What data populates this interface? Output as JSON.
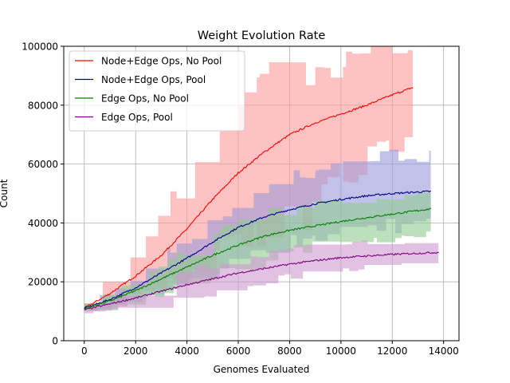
{
  "chart_data": {
    "type": "line",
    "title": "Weight Evolution Rate",
    "xlabel": "Genomes Evaluated",
    "ylabel": "Count",
    "xlim": [
      -800,
      14600
    ],
    "ylim": [
      0,
      100000
    ],
    "xticks": [
      0,
      2000,
      4000,
      6000,
      8000,
      10000,
      12000,
      14000
    ],
    "yticks": [
      0,
      20000,
      40000,
      60000,
      80000,
      100000
    ],
    "grid": true,
    "legend_position": "top-left",
    "series": [
      {
        "name": "Node+Edge Ops, No Pool",
        "color": "#ff0000",
        "band_color": "#ff9999",
        "x": [
          0,
          1000,
          2000,
          3000,
          4000,
          5000,
          6000,
          7000,
          8000,
          9000,
          10000,
          11000,
          12000,
          12800
        ],
        "y": [
          11000,
          16000,
          22000,
          29000,
          38000,
          48000,
          57000,
          64000,
          70000,
          74000,
          77000,
          80000,
          83500,
          86000
        ],
        "lower": [
          10000,
          12000,
          15000,
          19000,
          24000,
          29000,
          34000,
          38000,
          41000,
          45000,
          55000,
          62000,
          65000,
          68000
        ],
        "upper": [
          13000,
          22000,
          30000,
          42000,
          58000,
          70000,
          80000,
          88000,
          90000,
          93000,
          96000,
          98000,
          100000,
          100000
        ]
      },
      {
        "name": "Node+Edge Ops, Pool",
        "color": "#00008b",
        "band_color": "#9a9ad8",
        "x": [
          0,
          1000,
          2000,
          3000,
          4000,
          5000,
          6000,
          7000,
          8000,
          9000,
          10000,
          11000,
          12000,
          13000,
          13500
        ],
        "y": [
          11000,
          14000,
          18000,
          23000,
          28000,
          33500,
          38500,
          42000,
          44500,
          46500,
          48000,
          49200,
          50000,
          50500,
          50700
        ],
        "lower": [
          10000,
          11500,
          14000,
          17000,
          20000,
          24000,
          28000,
          31000,
          33000,
          35000,
          36500,
          38000,
          39000,
          40000,
          40500
        ],
        "upper": [
          12500,
          17000,
          22000,
          29000,
          35000,
          40000,
          45000,
          52000,
          56000,
          59000,
          61000,
          62500,
          63000,
          63000,
          63000
        ]
      },
      {
        "name": "Edge Ops, No Pool",
        "color": "#008000",
        "band_color": "#8fcb8f",
        "x": [
          0,
          1000,
          2000,
          3000,
          4000,
          5000,
          6000,
          7000,
          8000,
          9000,
          10000,
          11000,
          12000,
          13000,
          13500
        ],
        "y": [
          11000,
          13500,
          17000,
          21000,
          25000,
          29000,
          32500,
          35500,
          37500,
          39000,
          40500,
          41800,
          43000,
          44200,
          44800
        ],
        "lower": [
          10000,
          11000,
          13000,
          16000,
          19000,
          22000,
          25000,
          28000,
          30500,
          32000,
          33500,
          34500,
          35500,
          36500,
          37000
        ],
        "upper": [
          12500,
          16500,
          21000,
          26000,
          31000,
          36000,
          40000,
          43000,
          45000,
          46000,
          47000,
          48000,
          49000,
          49500,
          50000
        ]
      },
      {
        "name": "Edge Ops, Pool",
        "color": "#800080",
        "band_color": "#cf99cf",
        "x": [
          0,
          1000,
          2000,
          3000,
          4000,
          5000,
          6000,
          7000,
          8000,
          9000,
          10000,
          11000,
          12000,
          13000,
          13800
        ],
        "y": [
          10500,
          12500,
          14500,
          16800,
          19000,
          21000,
          23000,
          24500,
          26000,
          27200,
          28200,
          28800,
          29300,
          29700,
          30000
        ],
        "lower": [
          9500,
          10500,
          11800,
          13000,
          14500,
          16000,
          18000,
          20000,
          21500,
          22800,
          24000,
          25000,
          25500,
          25800,
          26000
        ],
        "upper": [
          11500,
          14500,
          17500,
          20500,
          23500,
          26000,
          28000,
          30000,
          31500,
          32500,
          33000,
          33500,
          33800,
          34000,
          34000
        ]
      }
    ]
  }
}
